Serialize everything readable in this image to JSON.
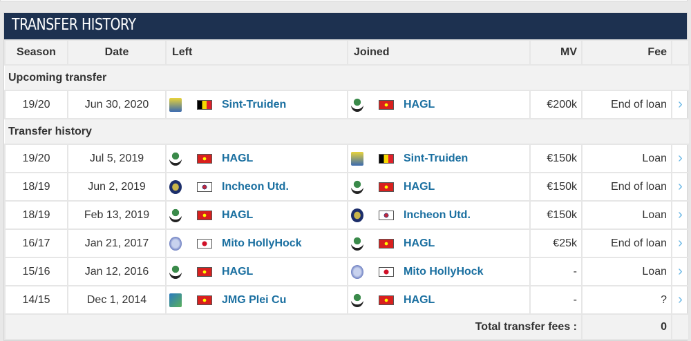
{
  "title": "TRANSFER HISTORY",
  "columns": {
    "season": "Season",
    "date": "Date",
    "left": "Left",
    "joined": "Joined",
    "mv": "MV",
    "fee": "Fee"
  },
  "sections": {
    "upcoming": "Upcoming transfer",
    "history": "Transfer history"
  },
  "upcoming": [
    {
      "season": "19/20",
      "date": "Jun 30, 2020",
      "left": "Sint-Truiden",
      "left_flag": "belgium",
      "joined": "HAGL",
      "joined_flag": "vietnam",
      "mv": "€200k",
      "fee": "End of loan"
    }
  ],
  "history": [
    {
      "season": "19/20",
      "date": "Jul 5, 2019",
      "left": "HAGL",
      "left_flag": "vietnam",
      "joined": "Sint-Truiden",
      "joined_flag": "belgium",
      "mv": "€150k",
      "fee": "Loan"
    },
    {
      "season": "18/19",
      "date": "Jun 2, 2019",
      "left": "Incheon Utd.",
      "left_flag": "korea",
      "joined": "HAGL",
      "joined_flag": "vietnam",
      "mv": "€150k",
      "fee": "End of loan"
    },
    {
      "season": "18/19",
      "date": "Feb 13, 2019",
      "left": "HAGL",
      "left_flag": "vietnam",
      "joined": "Incheon Utd.",
      "joined_flag": "korea",
      "mv": "€150k",
      "fee": "Loan"
    },
    {
      "season": "16/17",
      "date": "Jan 21, 2017",
      "left": "Mito HollyHock",
      "left_flag": "japan",
      "joined": "HAGL",
      "joined_flag": "vietnam",
      "mv": "€25k",
      "fee": "End of loan"
    },
    {
      "season": "15/16",
      "date": "Jan 12, 2016",
      "left": "HAGL",
      "left_flag": "vietnam",
      "joined": "Mito HollyHock",
      "joined_flag": "japan",
      "mv": "-",
      "fee": "Loan"
    },
    {
      "season": "14/15",
      "date": "Dec 1, 2014",
      "left": "JMG Plei Cu",
      "left_flag": "vietnam",
      "joined": "HAGL",
      "joined_flag": "vietnam",
      "mv": "-",
      "fee": "?"
    }
  ],
  "total": {
    "label": "Total transfer fees :",
    "value": "0"
  },
  "arrow": "›"
}
